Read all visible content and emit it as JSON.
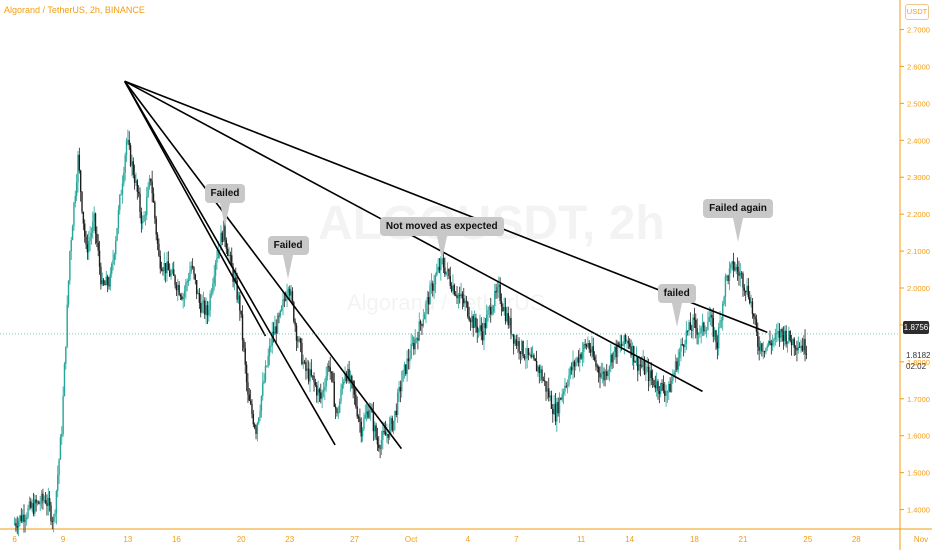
{
  "chart_data": {
    "type": "candlestick",
    "symbol": "Algorand / TetherUS, 2h, BINANCE",
    "watermark": "ALGOUSDT, 2h",
    "watermark_sub": "Algorand / TetherUS",
    "currency": "USDT",
    "ylim": [
      1.35,
      2.78
    ],
    "y_ticks": [
      "2.7000",
      "2.6000",
      "2.5000",
      "2.4000",
      "2.3000",
      "2.2000",
      "2.1000",
      "2.0000",
      "1.9000",
      "1.8000",
      "1.7000",
      "1.6000",
      "1.5000",
      "1.4000"
    ],
    "x_ticks": [
      "6",
      "9",
      "13",
      "16",
      "20",
      "23",
      "27",
      "Oct",
      "4",
      "7",
      "11",
      "14",
      "18",
      "21",
      "25",
      "28",
      "Nov"
    ],
    "last_price": "1.8756",
    "price_line_value": "1.8182",
    "countdown": "02:02",
    "price_path": [
      [
        6,
        1.36
      ],
      [
        7,
        1.4
      ],
      [
        8,
        1.43
      ],
      [
        8.5,
        1.37
      ],
      [
        9,
        1.62
      ],
      [
        9.5,
        2.1
      ],
      [
        10,
        2.35
      ],
      [
        10.5,
        2.1
      ],
      [
        11,
        2.18
      ],
      [
        11.5,
        2.0
      ],
      [
        12,
        2.02
      ],
      [
        12.5,
        2.2
      ],
      [
        13,
        2.4
      ],
      [
        13.5,
        2.3
      ],
      [
        14,
        2.17
      ],
      [
        14.5,
        2.3
      ],
      [
        15,
        2.08
      ],
      [
        15.5,
        2.05
      ],
      [
        16,
        2.02
      ],
      [
        16.5,
        1.98
      ],
      [
        17,
        2.06
      ],
      [
        17.5,
        1.96
      ],
      [
        18,
        1.93
      ],
      [
        18.5,
        2.08
      ],
      [
        19,
        2.16
      ],
      [
        19.5,
        2.05
      ],
      [
        20,
        1.95
      ],
      [
        20.5,
        1.7
      ],
      [
        21,
        1.62
      ],
      [
        21.5,
        1.75
      ],
      [
        22,
        1.87
      ],
      [
        22.5,
        1.92
      ],
      [
        23,
        2.02
      ],
      [
        23.5,
        1.88
      ],
      [
        24,
        1.78
      ],
      [
        24.5,
        1.75
      ],
      [
        25,
        1.7
      ],
      [
        25.5,
        1.8
      ],
      [
        26,
        1.65
      ],
      [
        26.5,
        1.78
      ],
      [
        27,
        1.72
      ],
      [
        27.5,
        1.62
      ],
      [
        28,
        1.68
      ],
      [
        28.5,
        1.58
      ],
      [
        29,
        1.6
      ],
      [
        29.5,
        1.64
      ],
      [
        30,
        1.75
      ],
      [
        30.5,
        1.82
      ],
      [
        31,
        1.88
      ],
      [
        31.5,
        1.95
      ],
      [
        32,
        2.02
      ],
      [
        32.5,
        2.07
      ],
      [
        33,
        2.02
      ],
      [
        33.5,
        1.98
      ],
      [
        34,
        1.95
      ],
      [
        34.5,
        1.9
      ],
      [
        35,
        1.88
      ],
      [
        35.5,
        1.95
      ],
      [
        36,
        1.99
      ],
      [
        36.5,
        1.92
      ],
      [
        37,
        1.86
      ],
      [
        37.5,
        1.83
      ],
      [
        38,
        1.8
      ],
      [
        38.5,
        1.78
      ],
      [
        39,
        1.72
      ],
      [
        39.5,
        1.66
      ],
      [
        40,
        1.73
      ],
      [
        40.5,
        1.78
      ],
      [
        41,
        1.82
      ],
      [
        41.5,
        1.85
      ],
      [
        42,
        1.79
      ],
      [
        42.5,
        1.76
      ],
      [
        43,
        1.82
      ],
      [
        43.5,
        1.84
      ],
      [
        44,
        1.86
      ],
      [
        44.5,
        1.8
      ],
      [
        45,
        1.78
      ],
      [
        45.5,
        1.75
      ],
      [
        46,
        1.73
      ],
      [
        46.5,
        1.72
      ],
      [
        47,
        1.8
      ],
      [
        47.5,
        1.87
      ],
      [
        48,
        1.9
      ],
      [
        48.5,
        1.88
      ],
      [
        49,
        1.92
      ],
      [
        49.5,
        1.85
      ],
      [
        50,
        2.02
      ],
      [
        50.5,
        2.06
      ],
      [
        51,
        2.03
      ],
      [
        51.5,
        1.98
      ],
      [
        52,
        1.85
      ],
      [
        52.5,
        1.84
      ],
      [
        53,
        1.86
      ],
      [
        53.5,
        1.88
      ],
      [
        54,
        1.86
      ],
      [
        54.5,
        1.85
      ],
      [
        55,
        1.84
      ]
    ],
    "trendlines": [
      {
        "from": [
          12.8,
          2.56
        ],
        "to": [
          25.8,
          1.575
        ]
      },
      {
        "from": [
          12.8,
          2.56
        ],
        "to": [
          21.5,
          1.87
        ]
      },
      {
        "from": [
          12.8,
          2.56
        ],
        "to": [
          29.9,
          1.565
        ]
      },
      {
        "from": [
          12.8,
          2.56
        ],
        "to": [
          48.5,
          1.72
        ]
      },
      {
        "from": [
          12.8,
          2.56
        ],
        "to": [
          52.5,
          1.88
        ]
      }
    ],
    "annotations": [
      {
        "text": "Failed",
        "x": 19.0,
        "y": 2.16
      },
      {
        "text": "Failed",
        "x": 22.9,
        "y": 2.02
      },
      {
        "text": "Not moved as expected",
        "x": 32.4,
        "y": 2.07
      },
      {
        "text": "failed",
        "x": 46.9,
        "y": 1.89
      },
      {
        "text": "Failed again",
        "x": 50.7,
        "y": 2.12
      }
    ],
    "colors": {
      "up": "#26a69a",
      "down": "#1e1e1e",
      "axis": "#f39c12",
      "trend": "#000000"
    }
  }
}
